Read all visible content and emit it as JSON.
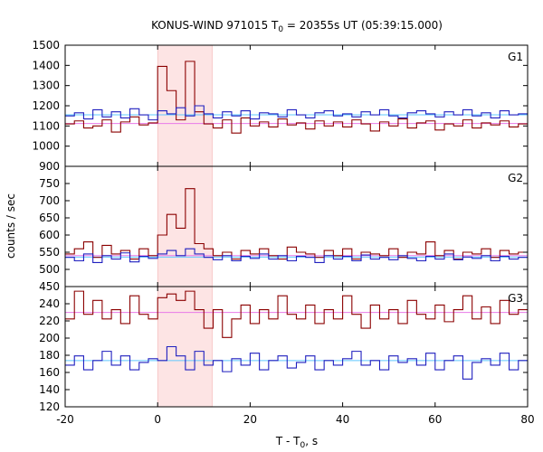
{
  "chart_data": {
    "type": "line",
    "title_parts": {
      "prefix": "KONUS-WIND 971015 T",
      "sub": "0",
      "suffix": " = 20355s UT (05:39:15.000)"
    },
    "xlabel_parts": {
      "prefix": "T - T",
      "sub": "0",
      "suffix": ", s"
    },
    "ylabel": "counts / sec",
    "xlim": [
      -20,
      80
    ],
    "x_ticks": [
      "-20",
      "0",
      "20",
      "40",
      "60",
      "80"
    ],
    "highlight_interval": [
      0,
      11.8
    ],
    "colors": {
      "dark": "#8b0000",
      "blue": "#1f1fbf",
      "pink": "#e87ae8",
      "cyan": "#5fc8ff",
      "highlight": "#fde4e4"
    },
    "panels": [
      {
        "label": "G1",
        "ylim": [
          900,
          1500
        ],
        "y_ticks": [
          "900",
          "1000",
          "1100",
          "1200",
          "1300",
          "1400",
          "1500"
        ],
        "bg_dark": 1112,
        "bg_blue": 1155,
        "series": [
          {
            "name": "",
            "color": "dark",
            "x": [
              -20,
              -18,
              -16,
              -14,
              -12,
              -10,
              -8,
              -6,
              -4,
              -2,
              0,
              2,
              4,
              6,
              8,
              10,
              12,
              14,
              16,
              18,
              20,
              22,
              24,
              26,
              28,
              30,
              32,
              34,
              36,
              38,
              40,
              42,
              44,
              46,
              48,
              50,
              52,
              54,
              56,
              58,
              60,
              62,
              64,
              66,
              68,
              70,
              72,
              74,
              76,
              78
            ],
            "values": [
              1110,
              1125,
              1090,
              1100,
              1130,
              1070,
              1120,
              1145,
              1105,
              1115,
              1395,
              1275,
              1130,
              1420,
              1170,
              1110,
              1090,
              1130,
              1065,
              1140,
              1100,
              1120,
              1095,
              1135,
              1105,
              1115,
              1085,
              1125,
              1100,
              1120,
              1095,
              1130,
              1110,
              1075,
              1120,
              1100,
              1135,
              1090,
              1115,
              1125,
              1080,
              1110,
              1100,
              1130,
              1090,
              1115,
              1105,
              1125,
              1095,
              1110
            ]
          },
          {
            "name": "",
            "color": "blue",
            "x": [
              -20,
              -18,
              -16,
              -14,
              -12,
              -10,
              -8,
              -6,
              -4,
              -2,
              0,
              2,
              4,
              6,
              8,
              10,
              12,
              14,
              16,
              18,
              20,
              22,
              24,
              26,
              28,
              30,
              32,
              34,
              36,
              38,
              40,
              42,
              44,
              46,
              48,
              50,
              52,
              54,
              56,
              58,
              60,
              62,
              64,
              66,
              68,
              70,
              72,
              74,
              76,
              78
            ],
            "values": [
              1150,
              1165,
              1135,
              1180,
              1145,
              1170,
              1140,
              1185,
              1155,
              1130,
              1175,
              1160,
              1190,
              1150,
              1200,
              1160,
              1140,
              1170,
              1150,
              1175,
              1135,
              1165,
              1160,
              1145,
              1180,
              1155,
              1140,
              1165,
              1175,
              1150,
              1160,
              1145,
              1170,
              1155,
              1180,
              1150,
              1140,
              1165,
              1175,
              1160,
              1145,
              1170,
              1155,
              1180,
              1150,
              1165,
              1140,
              1175,
              1155,
              1160
            ]
          }
        ]
      },
      {
        "label": "G2",
        "ylim": [
          450,
          800
        ],
        "y_ticks": [
          "450",
          "500",
          "550",
          "600",
          "650",
          "700",
          "750"
        ],
        "bg_dark": 540,
        "bg_blue": 536,
        "series": [
          {
            "name": "",
            "color": "dark",
            "x": [
              -20,
              -18,
              -16,
              -14,
              -12,
              -10,
              -8,
              -6,
              -4,
              -2,
              0,
              2,
              4,
              6,
              8,
              10,
              12,
              14,
              16,
              18,
              20,
              22,
              24,
              26,
              28,
              30,
              32,
              34,
              36,
              38,
              40,
              42,
              44,
              46,
              48,
              50,
              52,
              54,
              56,
              58,
              60,
              62,
              64,
              66,
              68,
              70,
              72,
              74,
              76,
              78
            ],
            "values": [
              545,
              560,
              580,
              535,
              570,
              545,
              555,
              530,
              560,
              540,
              600,
              660,
              620,
              735,
              575,
              560,
              540,
              550,
              530,
              555,
              545,
              560,
              540,
              530,
              565,
              550,
              545,
              535,
              555,
              540,
              560,
              530,
              550,
              545,
              540,
              560,
              535,
              550,
              545,
              580,
              540,
              555,
              530,
              550,
              545,
              560,
              535,
              555,
              545,
              550
            ]
          },
          {
            "name": "",
            "color": "blue",
            "x": [
              -20,
              -18,
              -16,
              -14,
              -12,
              -10,
              -8,
              -6,
              -4,
              -2,
              0,
              2,
              4,
              6,
              8,
              10,
              12,
              14,
              16,
              18,
              20,
              22,
              24,
              26,
              28,
              30,
              32,
              34,
              36,
              38,
              40,
              42,
              44,
              46,
              48,
              50,
              52,
              54,
              56,
              58,
              60,
              62,
              64,
              66,
              68,
              70,
              72,
              74,
              76,
              78
            ],
            "values": [
              535,
              525,
              545,
              520,
              540,
              530,
              548,
              522,
              538,
              532,
              545,
              555,
              540,
              560,
              545,
              535,
              528,
              540,
              525,
              538,
              532,
              545,
              530,
              540,
              525,
              538,
              535,
              520,
              540,
              530,
              538,
              525,
              542,
              530,
              535,
              528,
              540,
              532,
              525,
              538,
              530,
              545,
              528,
              536,
              532,
              540,
              525,
              538,
              530,
              535
            ]
          }
        ]
      },
      {
        "label": "G3",
        "ylim": [
          120,
          250
        ],
        "y_ticks": [
          "120",
          "140",
          "160",
          "180",
          "200",
          "220",
          "240"
        ],
        "bg_dark": 222,
        "bg_blue": 170,
        "series": [
          {
            "name": "",
            "color": "dark",
            "x": [
              -20,
              -18,
              -16,
              -14,
              -12,
              -10,
              -8,
              -6,
              -4,
              -2,
              0,
              2,
              4,
              6,
              8,
              10,
              12,
              14,
              16,
              18,
              20,
              22,
              24,
              26,
              28,
              30,
              32,
              34,
              36,
              38,
              40,
              42,
              44,
              46,
              48,
              50,
              52,
              54,
              56,
              58,
              60,
              62,
              64,
              66,
              68,
              70,
              72,
              74,
              76,
              78
            ],
            "values": [
              215,
              245,
              220,
              235,
              215,
              225,
              210,
              240,
              220,
              215,
              238,
              242,
              235,
              245,
              225,
              205,
              225,
              195,
              215,
              230,
              210,
              225,
              215,
              240,
              220,
              215,
              230,
              210,
              225,
              215,
              240,
              220,
              205,
              230,
              215,
              225,
              210,
              235,
              220,
              215,
              230,
              212,
              225,
              240,
              215,
              228,
              210,
              235,
              220,
              225
            ]
          },
          {
            "name": "",
            "color": "blue",
            "x": [
              -20,
              -18,
              -16,
              -14,
              -12,
              -10,
              -8,
              -6,
              -4,
              -2,
              0,
              2,
              4,
              6,
              8,
              10,
              12,
              14,
              16,
              18,
              20,
              22,
              24,
              26,
              28,
              30,
              32,
              34,
              36,
              38,
              40,
              42,
              44,
              46,
              48,
              50,
              52,
              54,
              56,
              58,
              60,
              62,
              64,
              66,
              68,
              70,
              72,
              74,
              76,
              78
            ],
            "values": [
              165,
              175,
              160,
              170,
              180,
              165,
              175,
              160,
              168,
              172,
              170,
              185,
              175,
              160,
              180,
              165,
              170,
              158,
              172,
              165,
              178,
              160,
              170,
              175,
              162,
              168,
              175,
              160,
              170,
              165,
              172,
              180,
              165,
              170,
              160,
              175,
              168,
              172,
              165,
              178,
              160,
              170,
              175,
              150,
              168,
              172,
              165,
              178,
              160,
              170
            ]
          }
        ]
      }
    ]
  }
}
